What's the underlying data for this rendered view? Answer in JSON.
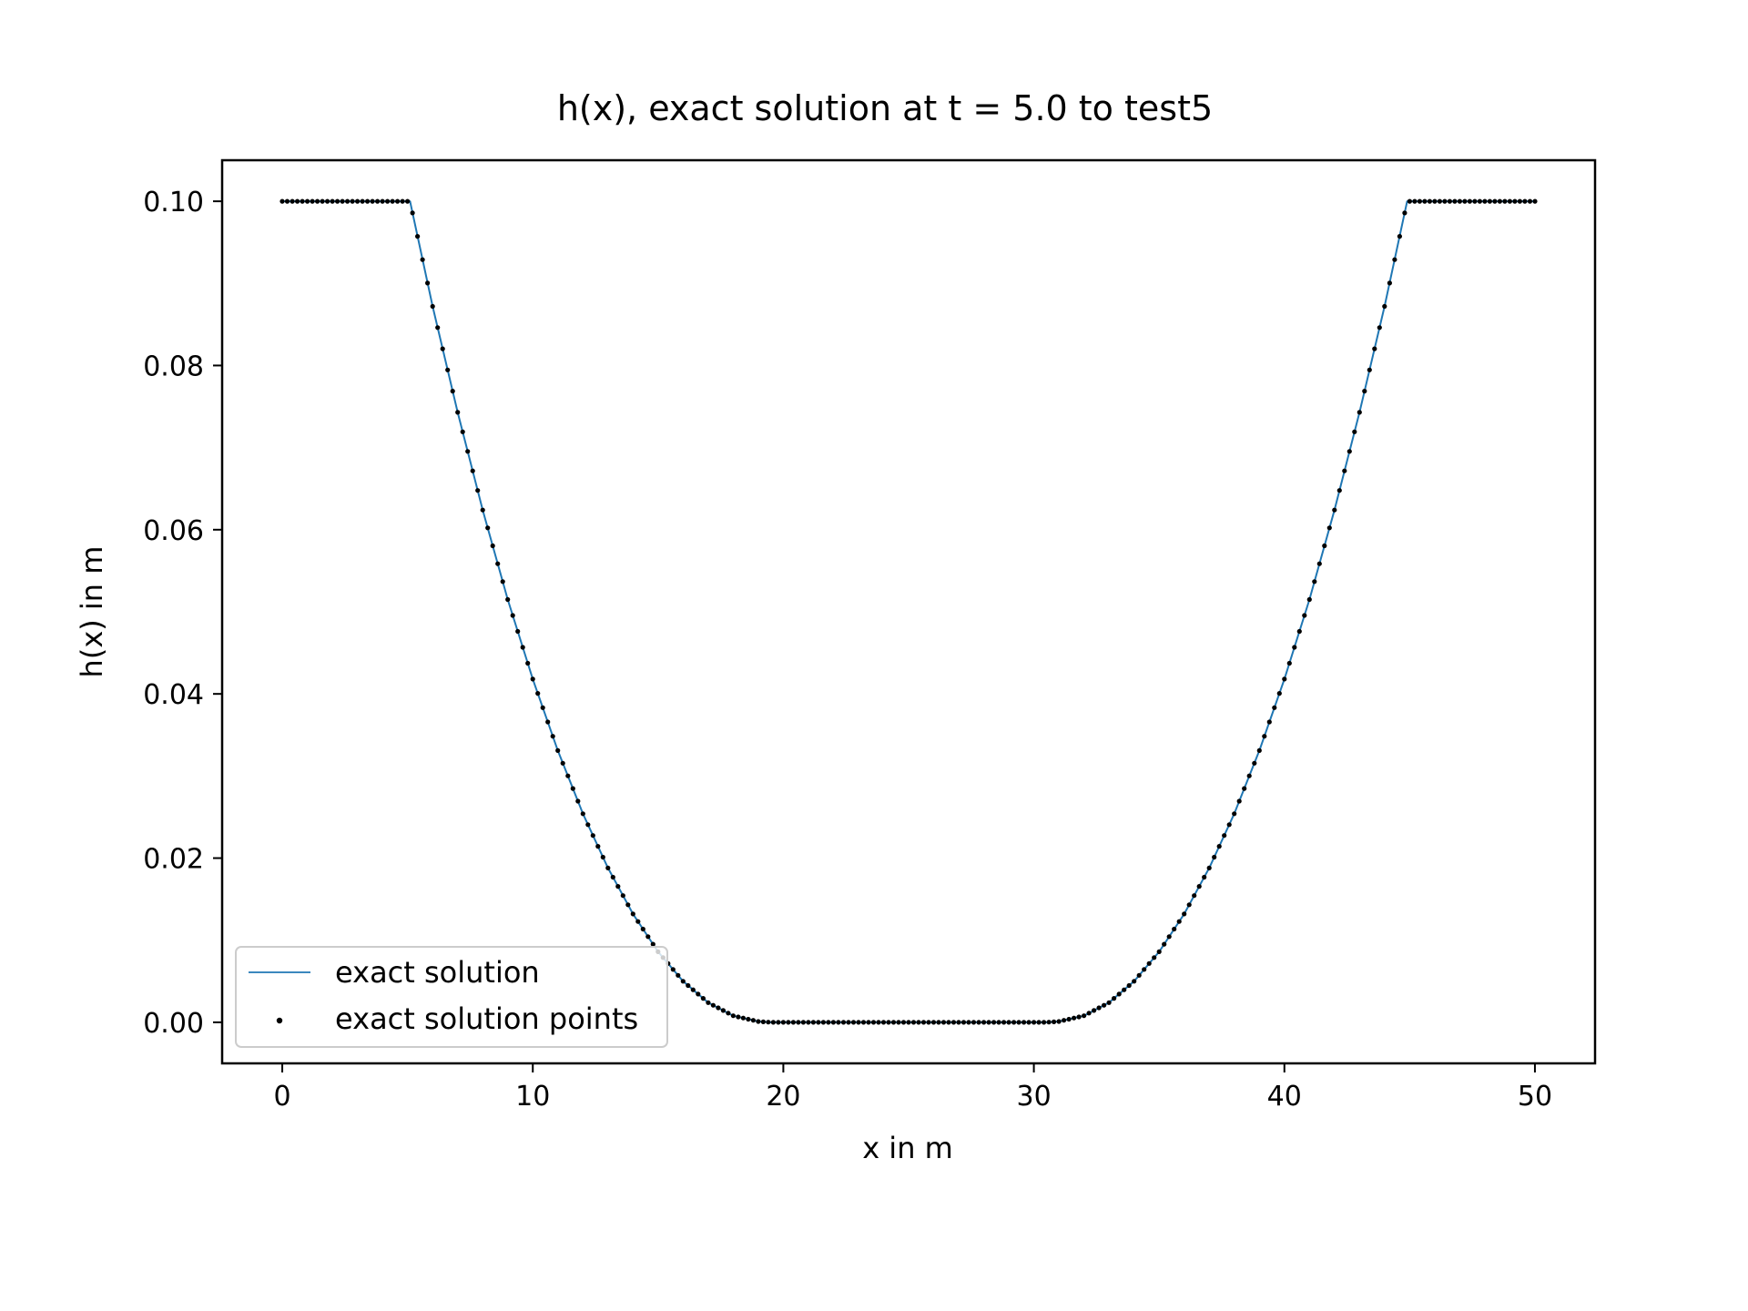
{
  "chart_data": {
    "type": "line",
    "title": "h(x), exact solution at t = 5.0 to test5",
    "xlabel": "x in m",
    "ylabel": "h(x) in m",
    "xlim": [
      -2.4,
      52.4
    ],
    "ylim": [
      -0.005,
      0.105
    ],
    "xticks": [
      0,
      10,
      20,
      30,
      40,
      50
    ],
    "xtick_labels": [
      "0",
      "10",
      "20",
      "30",
      "40",
      "50"
    ],
    "yticks": [
      0.0,
      0.02,
      0.04,
      0.06,
      0.08,
      0.1
    ],
    "ytick_labels": [
      "0.00",
      "0.02",
      "0.04",
      "0.06",
      "0.08",
      "0.10"
    ],
    "grid": false,
    "legend": {
      "position": "lower left",
      "entries": [
        "exact solution",
        "exact solution points"
      ]
    },
    "series": [
      {
        "name": "exact solution",
        "style": "line",
        "color": "#1f77b4",
        "x": [
          0,
          1,
          2,
          3,
          4,
          5,
          5.1,
          6,
          7,
          8,
          9,
          10,
          11,
          12,
          13,
          14,
          15,
          16,
          17,
          18,
          19,
          19.5,
          20,
          25,
          30,
          30.5,
          31,
          32,
          33,
          34,
          35,
          36,
          37,
          38,
          39,
          40,
          41,
          42,
          43,
          44,
          44.9,
          45,
          46,
          47,
          48,
          49,
          50
        ],
        "y": [
          0.1,
          0.1,
          0.1,
          0.1,
          0.1,
          0.1,
          0.1,
          0.0872,
          0.0743,
          0.0624,
          0.0515,
          0.0418,
          0.0331,
          0.0254,
          0.0188,
          0.0132,
          0.0086,
          0.005,
          0.0024,
          0.0008,
          0.0001,
          0.0,
          0.0,
          0.0,
          0.0,
          0.0,
          0.0001,
          0.0008,
          0.0024,
          0.005,
          0.0086,
          0.0132,
          0.0188,
          0.0254,
          0.0331,
          0.0418,
          0.0515,
          0.0624,
          0.0743,
          0.0872,
          0.1,
          0.1,
          0.1,
          0.1,
          0.1,
          0.1,
          0.1
        ]
      },
      {
        "name": "exact solution points",
        "style": "scatter",
        "color": "#000000",
        "x": [
          0,
          1,
          2,
          3,
          4,
          5,
          5.1,
          6,
          7,
          8,
          9,
          10,
          11,
          12,
          13,
          14,
          15,
          16,
          17,
          18,
          19,
          19.5,
          20,
          25,
          30,
          30.5,
          31,
          32,
          33,
          34,
          35,
          36,
          37,
          38,
          39,
          40,
          41,
          42,
          43,
          44,
          44.9,
          45,
          46,
          47,
          48,
          49,
          50
        ],
        "y": [
          0.1,
          0.1,
          0.1,
          0.1,
          0.1,
          0.1,
          0.1,
          0.0872,
          0.0743,
          0.0624,
          0.0515,
          0.0418,
          0.0331,
          0.0254,
          0.0188,
          0.0132,
          0.0086,
          0.005,
          0.0024,
          0.0008,
          0.0001,
          0.0,
          0.0,
          0.0,
          0.0,
          0.0,
          0.0001,
          0.0008,
          0.0024,
          0.005,
          0.0086,
          0.0132,
          0.0188,
          0.0254,
          0.0331,
          0.0418,
          0.0515,
          0.0624,
          0.0743,
          0.0872,
          0.1,
          0.1,
          0.1,
          0.1,
          0.1,
          0.1,
          0.1
        ]
      }
    ]
  }
}
